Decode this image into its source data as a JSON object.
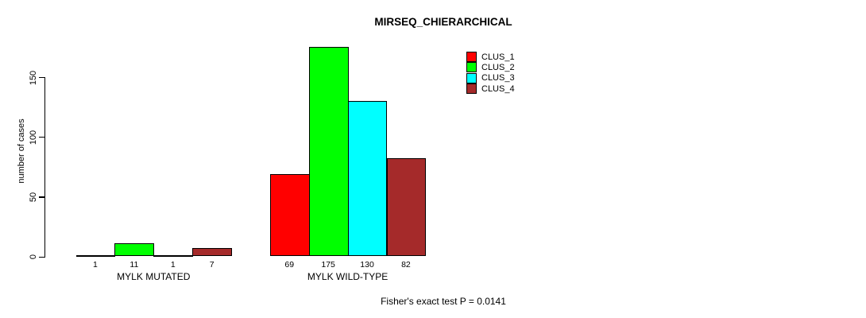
{
  "title": "MIRSEQ_CHIERARCHICAL",
  "footer": "Fisher's exact test P = 0.0141",
  "y_axis": {
    "label": "number of cases",
    "ticks": [
      0,
      50,
      100,
      150
    ]
  },
  "legend": {
    "items": [
      {
        "label": "CLUS_1",
        "color": "#FF0000"
      },
      {
        "label": "CLUS_2",
        "color": "#00FF00"
      },
      {
        "label": "CLUS_3",
        "color": "#00FFFF"
      },
      {
        "label": "CLUS_4",
        "color": "#A52A2A"
      }
    ]
  },
  "chart_data": {
    "type": "bar",
    "title": "MIRSEQ_CHIERARCHICAL",
    "categories": [
      "MYLK MUTATED",
      "MYLK WILD-TYPE"
    ],
    "series": [
      {
        "name": "CLUS_1",
        "color": "#FF0000",
        "values": [
          1,
          69
        ]
      },
      {
        "name": "CLUS_2",
        "color": "#00FF00",
        "values": [
          11,
          175
        ]
      },
      {
        "name": "CLUS_3",
        "color": "#00FFFF",
        "values": [
          1,
          130
        ]
      },
      {
        "name": "CLUS_4",
        "color": "#A52A2A",
        "values": [
          7,
          82
        ]
      }
    ],
    "bar_value_labels": [
      [
        1,
        11,
        1,
        7
      ],
      [
        69,
        175,
        130,
        82
      ]
    ],
    "xlabel": "",
    "ylabel": "number of cases",
    "ylim": [
      0,
      175
    ],
    "yticks": [
      0,
      50,
      100,
      150
    ],
    "grid": false,
    "legend_position": "top-right",
    "annotation": "Fisher's exact test P = 0.0141"
  }
}
